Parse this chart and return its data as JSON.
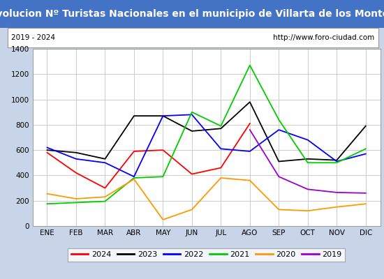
{
  "title": "Evolucion Nº Turistas Nacionales en el municipio de Villarta de los Montes",
  "subtitle_left": "2019 - 2024",
  "subtitle_right": "http://www.foro-ciudad.com",
  "months": [
    "ENE",
    "FEB",
    "MAR",
    "ABR",
    "MAY",
    "JUN",
    "JUL",
    "AGO",
    "SEP",
    "OCT",
    "NOV",
    "DIC"
  ],
  "ylim": [
    0,
    1400
  ],
  "yticks": [
    0,
    200,
    400,
    600,
    800,
    1000,
    1200,
    1400
  ],
  "series": {
    "2024": {
      "color": "#ff0000",
      "values": [
        580,
        420,
        300,
        590,
        600,
        410,
        460,
        810,
        null,
        null,
        null,
        null
      ]
    },
    "2023": {
      "color": "#000000",
      "values": [
        600,
        580,
        530,
        870,
        870,
        750,
        770,
        980,
        510,
        530,
        520,
        790
      ]
    },
    "2022": {
      "color": "#0000ff",
      "values": [
        620,
        530,
        500,
        390,
        870,
        880,
        610,
        590,
        760,
        680,
        510,
        570
      ]
    },
    "2021": {
      "color": "#00cc00",
      "values": [
        175,
        185,
        195,
        380,
        390,
        900,
        790,
        1270,
        840,
        500,
        500,
        610
      ]
    },
    "2020": {
      "color": "#ff9900",
      "values": [
        255,
        215,
        230,
        370,
        50,
        130,
        380,
        360,
        130,
        120,
        150,
        175
      ]
    },
    "2019": {
      "color": "#9900cc",
      "values": [
        null,
        null,
        null,
        null,
        null,
        null,
        null,
        760,
        390,
        290,
        265,
        260
      ]
    }
  },
  "title_bg": "#4472c4",
  "title_color": "#ffffff",
  "title_fontsize": 10,
  "subtitle_fontsize": 7.5,
  "tick_fontsize": 7.5,
  "legend_fontsize": 8,
  "outer_bg": "#c8d4e8",
  "inner_bg": "#ffffff",
  "grid_color": "#cccccc",
  "legend_years": [
    "2024",
    "2023",
    "2022",
    "2021",
    "2020",
    "2019"
  ]
}
